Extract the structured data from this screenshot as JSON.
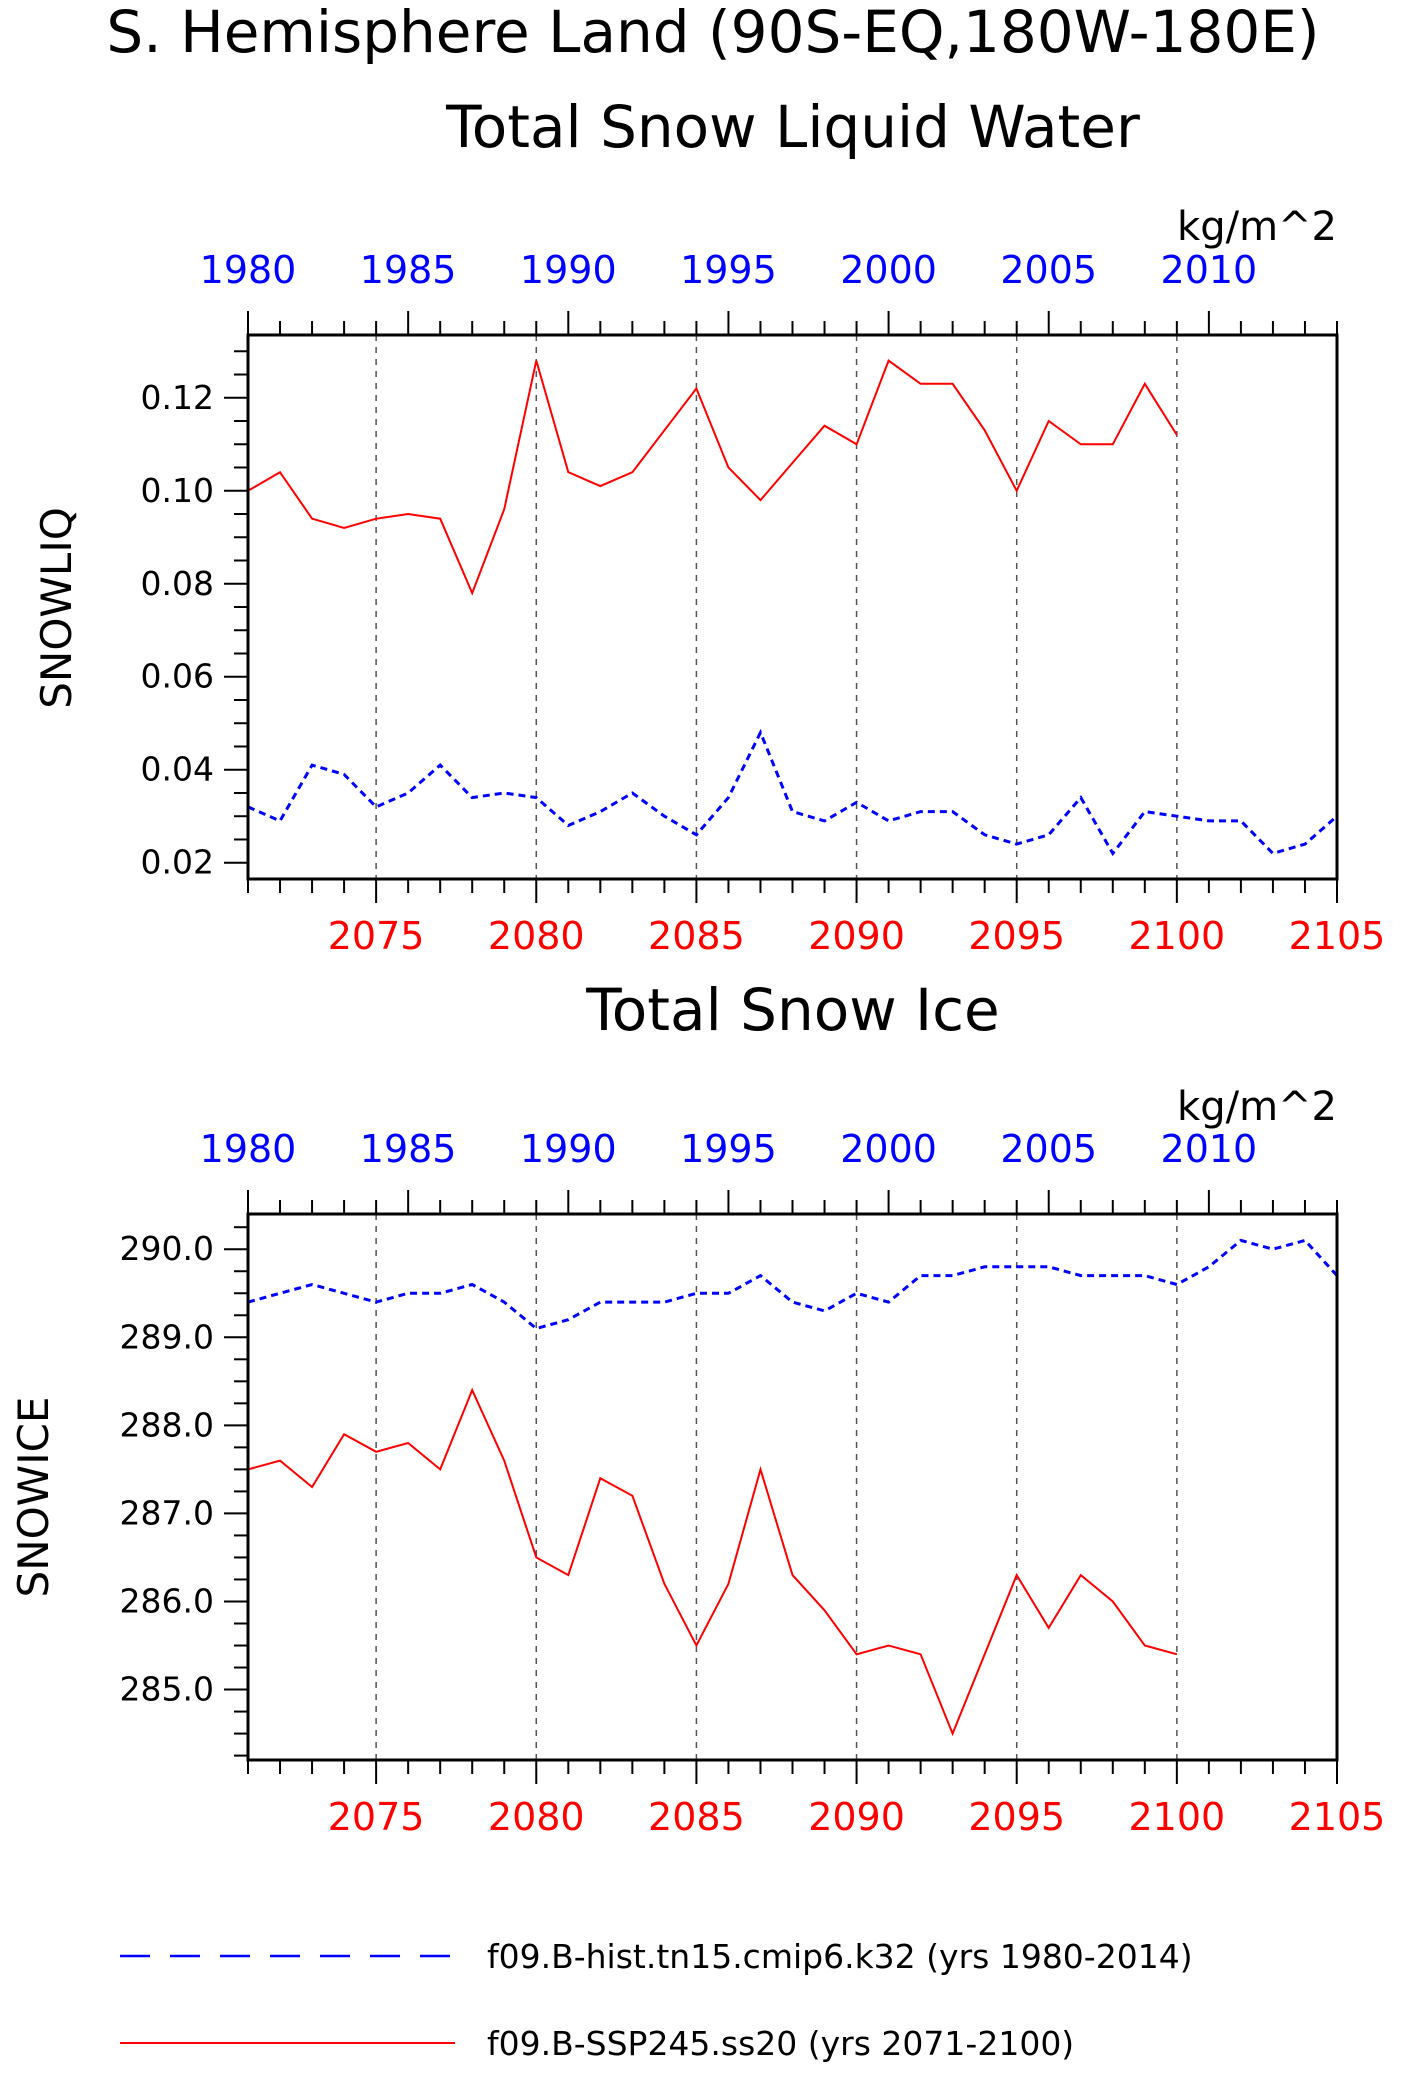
{
  "figure": {
    "title_line1": "S. Hemisphere Land (90S-EQ,180W-180E)"
  },
  "legend": {
    "hist_label": "f09.B-hist.tn15.cmip6.k32 (yrs 1980-2014)",
    "ssp_label": "f09.B-SSP245.ss20 (yrs 2071-2100)",
    "hist_color": "#0000ff",
    "ssp_color": "#ff0000"
  },
  "chart_data": [
    {
      "type": "line",
      "title": "Total Snow Liquid Water",
      "ylabel": "SNOWLIQ",
      "units": "kg/m^2",
      "ylim": [
        0.0165,
        0.1335
      ],
      "yticks": [
        0.02,
        0.04,
        0.06,
        0.08,
        0.1,
        0.12
      ],
      "ytick_labels": [
        "0.02",
        "0.04",
        "0.06",
        "0.08",
        "0.10",
        "0.12"
      ],
      "x_bottom_ticks": [
        "2075",
        "2080",
        "2085",
        "2090",
        "2095",
        "2100",
        "2105"
      ],
      "x_top_ticks": [
        "1980",
        "1985",
        "1990",
        "1995",
        "2000",
        "2005",
        "2010"
      ],
      "grid": "dashed vertical at major bottom ticks",
      "series": [
        {
          "name": "f09.B-SSP245.ss20 (yrs 2071-2100)",
          "axis": "bottom",
          "color": "#ff0000",
          "style": "solid",
          "x": [
            2071,
            2072,
            2073,
            2074,
            2075,
            2076,
            2077,
            2078,
            2079,
            2080,
            2081,
            2082,
            2083,
            2084,
            2085,
            2086,
            2087,
            2088,
            2089,
            2090,
            2091,
            2092,
            2093,
            2094,
            2095,
            2096,
            2097,
            2098,
            2099,
            2100
          ],
          "values": [
            0.1,
            0.104,
            0.094,
            0.092,
            0.094,
            0.095,
            0.094,
            0.078,
            0.096,
            0.128,
            0.104,
            0.101,
            0.104,
            0.113,
            0.122,
            0.105,
            0.098,
            0.106,
            0.114,
            0.11,
            0.128,
            0.123,
            0.123,
            0.113,
            0.1,
            0.115,
            0.11,
            0.11,
            0.123,
            0.112
          ]
        },
        {
          "name": "f09.B-hist.tn15.cmip6.k32 (yrs 1980-2014)",
          "axis": "top",
          "color": "#0000ff",
          "style": "dashed",
          "x": [
            1980,
            1981,
            1982,
            1983,
            1984,
            1985,
            1986,
            1987,
            1988,
            1989,
            1990,
            1991,
            1992,
            1993,
            1994,
            1995,
            1996,
            1997,
            1998,
            1999,
            2000,
            2001,
            2002,
            2003,
            2004,
            2005,
            2006,
            2007,
            2008,
            2009,
            2010,
            2011,
            2012,
            2013,
            2014
          ],
          "values": [
            0.032,
            0.029,
            0.041,
            0.039,
            0.032,
            0.035,
            0.041,
            0.034,
            0.035,
            0.034,
            0.028,
            0.031,
            0.035,
            0.03,
            0.026,
            0.034,
            0.048,
            0.031,
            0.029,
            0.033,
            0.029,
            0.031,
            0.031,
            0.026,
            0.024,
            0.026,
            0.034,
            0.022,
            0.031,
            0.03,
            0.029,
            0.029,
            0.022,
            0.024,
            0.03
          ]
        }
      ]
    },
    {
      "type": "line",
      "title": "Total Snow Ice",
      "ylabel": "SNOWICE",
      "units": "kg/m^2",
      "ylim": [
        284.2,
        290.4
      ],
      "yticks": [
        285.0,
        286.0,
        287.0,
        288.0,
        289.0,
        290.0
      ],
      "ytick_labels": [
        "285.0",
        "286.0",
        "287.0",
        "288.0",
        "289.0",
        "290.0"
      ],
      "x_bottom_ticks": [
        "2075",
        "2080",
        "2085",
        "2090",
        "2095",
        "2100",
        "2105"
      ],
      "x_top_ticks": [
        "1980",
        "1985",
        "1990",
        "1995",
        "2000",
        "2005",
        "2010"
      ],
      "grid": "dashed vertical at major bottom ticks",
      "series": [
        {
          "name": "f09.B-SSP245.ss20 (yrs 2071-2100)",
          "axis": "bottom",
          "color": "#ff0000",
          "style": "solid",
          "x": [
            2071,
            2072,
            2073,
            2074,
            2075,
            2076,
            2077,
            2078,
            2079,
            2080,
            2081,
            2082,
            2083,
            2084,
            2085,
            2086,
            2087,
            2088,
            2089,
            2090,
            2091,
            2092,
            2093,
            2094,
            2095,
            2096,
            2097,
            2098,
            2099,
            2100
          ],
          "values": [
            287.5,
            287.6,
            287.3,
            287.9,
            287.7,
            287.8,
            287.5,
            288.4,
            287.6,
            286.5,
            286.3,
            287.4,
            287.2,
            286.2,
            285.5,
            286.2,
            287.5,
            286.3,
            285.9,
            285.4,
            285.5,
            285.4,
            284.5,
            285.4,
            286.3,
            285.7,
            286.3,
            286.0,
            285.5,
            285.4
          ]
        },
        {
          "name": "f09.B-hist.tn15.cmip6.k32 (yrs 1980-2014)",
          "axis": "top",
          "color": "#0000ff",
          "style": "dashed",
          "x": [
            1980,
            1981,
            1982,
            1983,
            1984,
            1985,
            1986,
            1987,
            1988,
            1989,
            1990,
            1991,
            1992,
            1993,
            1994,
            1995,
            1996,
            1997,
            1998,
            1999,
            2000,
            2001,
            2002,
            2003,
            2004,
            2005,
            2006,
            2007,
            2008,
            2009,
            2010,
            2011,
            2012,
            2013,
            2014
          ],
          "values": [
            289.4,
            289.5,
            289.6,
            289.5,
            289.4,
            289.5,
            289.5,
            289.6,
            289.4,
            289.1,
            289.2,
            289.4,
            289.4,
            289.4,
            289.5,
            289.5,
            289.7,
            289.4,
            289.3,
            289.5,
            289.4,
            289.7,
            289.7,
            289.8,
            289.8,
            289.8,
            289.7,
            289.7,
            289.7,
            289.6,
            289.8,
            290.1,
            290.0,
            290.1,
            289.7
          ]
        }
      ]
    }
  ]
}
